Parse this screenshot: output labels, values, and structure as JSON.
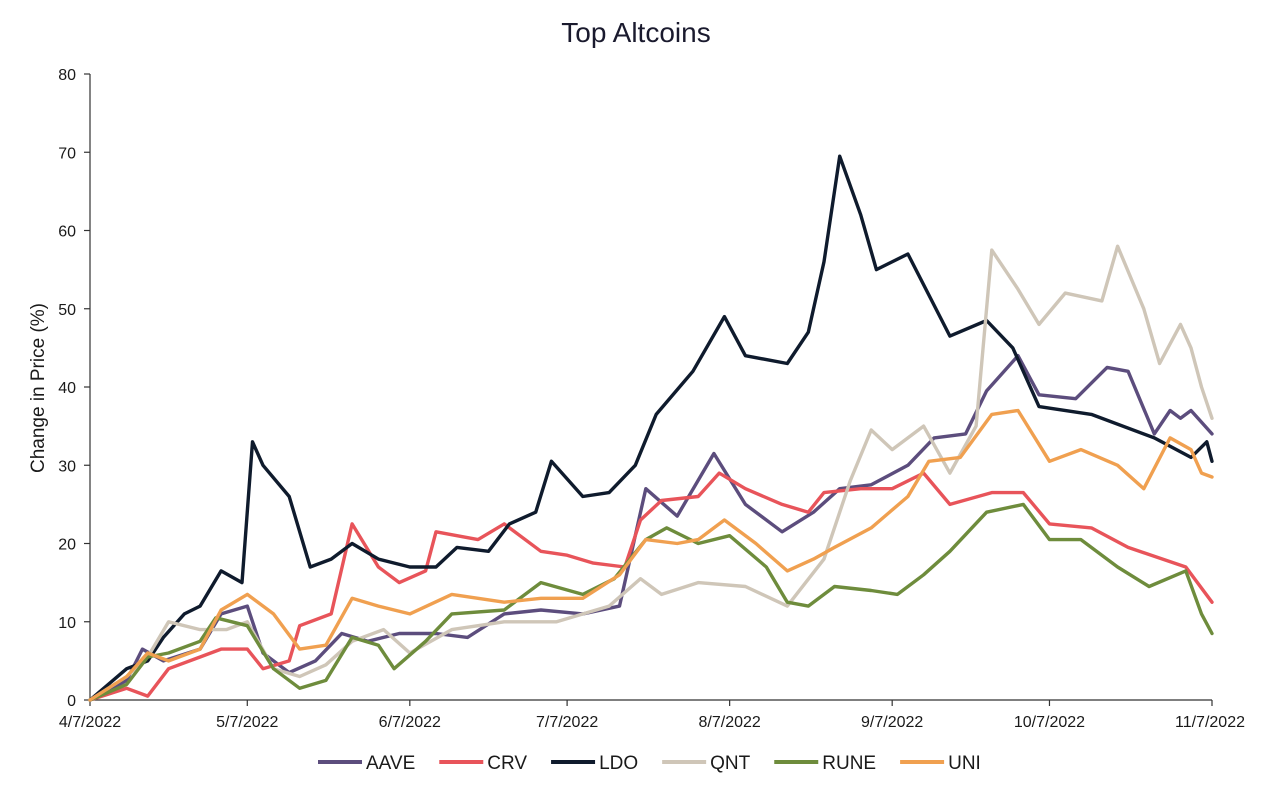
{
  "colors": {
    "AAVE": "#5c4d7d",
    "CRV": "#e8545a",
    "LDO": "#0f1b2d",
    "QNT": "#cfc6b8",
    "RUNE": "#6e8c3c",
    "UNI": "#f0a050"
  },
  "chart_data": {
    "type": "line",
    "title": "Top Altcoins",
    "xlabel": "",
    "ylabel": "Change in Price (%)",
    "x_ticks": [
      "4/7/2022",
      "5/7/2022",
      "6/7/2022",
      "7/7/2022",
      "8/7/2022",
      "9/7/2022",
      "10/7/2022",
      "11/7/2022"
    ],
    "y_ticks": [
      0,
      10,
      20,
      30,
      40,
      50,
      60,
      70,
      80
    ],
    "ylim": [
      0,
      80
    ],
    "xlim": [
      "4/7/2022",
      "11/7/2022"
    ],
    "legend_position": "bottom",
    "grid": false,
    "series": [
      {
        "name": "AAVE",
        "points": [
          [
            "4/7/2022",
            0
          ],
          [
            "4/14/2022",
            2.5
          ],
          [
            "4/17/2022",
            6.5
          ],
          [
            "4/21/2022",
            5
          ],
          [
            "4/28/2022",
            6.5
          ],
          [
            "5/2/2022",
            11
          ],
          [
            "5/7/2022",
            12
          ],
          [
            "5/10/2022",
            6
          ],
          [
            "5/15/2022",
            3.5
          ],
          [
            "5/20/2022",
            5
          ],
          [
            "5/25/2022",
            8.5
          ],
          [
            "5/30/2022",
            7.5
          ],
          [
            "6/5/2022",
            8.5
          ],
          [
            "6/12/2022",
            8.5
          ],
          [
            "6/18/2022",
            8
          ],
          [
            "6/25/2022",
            11
          ],
          [
            "7/2/2022",
            11.5
          ],
          [
            "7/10/2022",
            11
          ],
          [
            "7/17/2022",
            12
          ],
          [
            "7/22/2022",
            27
          ],
          [
            "7/28/2022",
            23.5
          ],
          [
            "8/4/2022",
            31.5
          ],
          [
            "8/10/2022",
            25
          ],
          [
            "8/17/2022",
            21.5
          ],
          [
            "8/23/2022",
            24
          ],
          [
            "8/28/2022",
            27
          ],
          [
            "9/3/2022",
            27.5
          ],
          [
            "9/10/2022",
            30
          ],
          [
            "9/15/2022",
            33.5
          ],
          [
            "9/21/2022",
            34
          ],
          [
            "9/25/2022",
            39.5
          ],
          [
            "10/1/2022",
            44
          ],
          [
            "10/5/2022",
            39
          ],
          [
            "10/12/2022",
            38.5
          ],
          [
            "10/18/2022",
            42.5
          ],
          [
            "10/22/2022",
            42
          ],
          [
            "10/27/2022",
            34
          ],
          [
            "10/30/2022",
            37
          ],
          [
            "11/1/2022",
            36
          ],
          [
            "11/3/2022",
            37
          ],
          [
            "11/7/2022",
            34
          ]
        ]
      },
      {
        "name": "CRV",
        "points": [
          [
            "4/7/2022",
            0
          ],
          [
            "4/14/2022",
            1.5
          ],
          [
            "4/18/2022",
            0.5
          ],
          [
            "4/22/2022",
            4
          ],
          [
            "4/28/2022",
            5.5
          ],
          [
            "5/2/2022",
            6.5
          ],
          [
            "5/7/2022",
            6.5
          ],
          [
            "5/10/2022",
            4
          ],
          [
            "5/15/2022",
            5
          ],
          [
            "5/17/2022",
            9.5
          ],
          [
            "5/23/2022",
            11
          ],
          [
            "5/27/2022",
            22.5
          ],
          [
            "6/1/2022",
            17
          ],
          [
            "6/5/2022",
            15
          ],
          [
            "6/10/2022",
            16.5
          ],
          [
            "6/12/2022",
            21.5
          ],
          [
            "6/20/2022",
            20.5
          ],
          [
            "6/25/2022",
            22.5
          ],
          [
            "7/2/2022",
            19
          ],
          [
            "7/7/2022",
            18.5
          ],
          [
            "7/12/2022",
            17.5
          ],
          [
            "7/18/2022",
            17
          ],
          [
            "7/21/2022",
            23
          ],
          [
            "7/25/2022",
            25.5
          ],
          [
            "8/1/2022",
            26
          ],
          [
            "8/5/2022",
            29
          ],
          [
            "8/10/2022",
            27
          ],
          [
            "8/17/2022",
            25
          ],
          [
            "8/22/2022",
            24
          ],
          [
            "8/25/2022",
            26.5
          ],
          [
            "9/1/2022",
            27
          ],
          [
            "9/7/2022",
            27
          ],
          [
            "9/13/2022",
            29
          ],
          [
            "9/18/2022",
            25
          ],
          [
            "9/26/2022",
            26.5
          ],
          [
            "10/2/2022",
            26.5
          ],
          [
            "10/7/2022",
            22.5
          ],
          [
            "10/15/2022",
            22
          ],
          [
            "10/22/2022",
            19.5
          ],
          [
            "11/2/2022",
            17
          ],
          [
            "11/7/2022",
            12.5
          ]
        ]
      },
      {
        "name": "LDO",
        "points": [
          [
            "4/7/2022",
            0
          ],
          [
            "4/14/2022",
            4
          ],
          [
            "4/18/2022",
            5
          ],
          [
            "4/21/2022",
            8
          ],
          [
            "4/25/2022",
            11
          ],
          [
            "4/28/2022",
            12
          ],
          [
            "5/2/2022",
            16.5
          ],
          [
            "5/6/2022",
            15
          ],
          [
            "5/8/2022",
            33
          ],
          [
            "5/10/2022",
            30
          ],
          [
            "5/15/2022",
            26
          ],
          [
            "5/19/2022",
            17
          ],
          [
            "5/23/2022",
            18
          ],
          [
            "5/27/2022",
            20
          ],
          [
            "6/1/2022",
            18
          ],
          [
            "6/7/2022",
            17
          ],
          [
            "6/12/2022",
            17
          ],
          [
            "6/16/2022",
            19.5
          ],
          [
            "6/22/2022",
            19
          ],
          [
            "6/26/2022",
            22.5
          ],
          [
            "7/1/2022",
            24
          ],
          [
            "7/4/2022",
            30.5
          ],
          [
            "7/10/2022",
            26
          ],
          [
            "7/15/2022",
            26.5
          ],
          [
            "7/20/2022",
            30
          ],
          [
            "7/24/2022",
            36.5
          ],
          [
            "7/31/2022",
            42
          ],
          [
            "8/6/2022",
            49
          ],
          [
            "8/10/2022",
            44
          ],
          [
            "8/18/2022",
            43
          ],
          [
            "8/22/2022",
            47
          ],
          [
            "8/25/2022",
            56
          ],
          [
            "8/28/2022",
            69.5
          ],
          [
            "9/1/2022",
            62
          ],
          [
            "9/4/2022",
            55
          ],
          [
            "9/10/2022",
            57
          ],
          [
            "9/18/2022",
            46.5
          ],
          [
            "9/25/2022",
            48.5
          ],
          [
            "9/30/2022",
            45
          ],
          [
            "10/5/2022",
            37.5
          ],
          [
            "10/15/2022",
            36.5
          ],
          [
            "10/27/2022",
            33.5
          ],
          [
            "11/3/2022",
            31
          ],
          [
            "11/6/2022",
            33
          ],
          [
            "11/7/2022",
            30.5
          ]
        ]
      },
      {
        "name": "QNT",
        "points": [
          [
            "4/7/2022",
            0
          ],
          [
            "4/14/2022",
            3
          ],
          [
            "4/18/2022",
            5.5
          ],
          [
            "4/22/2022",
            10
          ],
          [
            "4/28/2022",
            9
          ],
          [
            "5/3/2022",
            9
          ],
          [
            "5/7/2022",
            10
          ],
          [
            "5/12/2022",
            4
          ],
          [
            "5/17/2022",
            3
          ],
          [
            "5/22/2022",
            4.5
          ],
          [
            "5/27/2022",
            7.5
          ],
          [
            "6/2/2022",
            9
          ],
          [
            "6/7/2022",
            6
          ],
          [
            "6/15/2022",
            9
          ],
          [
            "6/25/2022",
            10
          ],
          [
            "7/5/2022",
            10
          ],
          [
            "7/15/2022",
            12
          ],
          [
            "7/21/2022",
            15.5
          ],
          [
            "7/25/2022",
            13.5
          ],
          [
            "8/1/2022",
            15
          ],
          [
            "8/10/2022",
            14.5
          ],
          [
            "8/18/2022",
            12
          ],
          [
            "8/25/2022",
            18
          ],
          [
            "8/30/2022",
            28
          ],
          [
            "9/3/2022",
            34.5
          ],
          [
            "9/7/2022",
            32
          ],
          [
            "9/13/2022",
            35
          ],
          [
            "9/18/2022",
            29
          ],
          [
            "9/23/2022",
            35
          ],
          [
            "9/26/2022",
            57.5
          ],
          [
            "10/1/2022",
            52.5
          ],
          [
            "10/5/2022",
            48
          ],
          [
            "10/10/2022",
            52
          ],
          [
            "10/17/2022",
            51
          ],
          [
            "10/20/2022",
            58
          ],
          [
            "10/25/2022",
            50
          ],
          [
            "10/28/2022",
            43
          ],
          [
            "11/1/2022",
            48
          ],
          [
            "11/3/2022",
            45
          ],
          [
            "11/5/2022",
            40
          ],
          [
            "11/7/2022",
            36
          ]
        ]
      },
      {
        "name": "RUNE",
        "points": [
          [
            "4/7/2022",
            0
          ],
          [
            "4/14/2022",
            2
          ],
          [
            "4/18/2022",
            5.5
          ],
          [
            "4/22/2022",
            6
          ],
          [
            "4/28/2022",
            7.5
          ],
          [
            "5/1/2022",
            10.5
          ],
          [
            "5/7/2022",
            9.5
          ],
          [
            "5/12/2022",
            4
          ],
          [
            "5/17/2022",
            1.5
          ],
          [
            "5/22/2022",
            2.5
          ],
          [
            "5/27/2022",
            8
          ],
          [
            "6/1/2022",
            7
          ],
          [
            "6/4/2022",
            4
          ],
          [
            "6/10/2022",
            7.5
          ],
          [
            "6/15/2022",
            11
          ],
          [
            "6/25/2022",
            11.5
          ],
          [
            "7/2/2022",
            15
          ],
          [
            "7/10/2022",
            13.5
          ],
          [
            "7/16/2022",
            15.5
          ],
          [
            "7/22/2022",
            20.5
          ],
          [
            "7/26/2022",
            22
          ],
          [
            "8/1/2022",
            20
          ],
          [
            "8/7/2022",
            21
          ],
          [
            "8/14/2022",
            17
          ],
          [
            "8/18/2022",
            12.5
          ],
          [
            "8/22/2022",
            12
          ],
          [
            "8/27/2022",
            14.5
          ],
          [
            "9/3/2022",
            14
          ],
          [
            "9/8/2022",
            13.5
          ],
          [
            "9/13/2022",
            16
          ],
          [
            "9/18/2022",
            19
          ],
          [
            "9/25/2022",
            24
          ],
          [
            "10/2/2022",
            25
          ],
          [
            "10/7/2022",
            20.5
          ],
          [
            "10/13/2022",
            20.5
          ],
          [
            "10/20/2022",
            17
          ],
          [
            "10/26/2022",
            14.5
          ],
          [
            "11/2/2022",
            16.5
          ],
          [
            "11/5/2022",
            11
          ],
          [
            "11/7/2022",
            8.5
          ]
        ]
      },
      {
        "name": "UNI",
        "points": [
          [
            "4/7/2022",
            0
          ],
          [
            "4/14/2022",
            3
          ],
          [
            "4/18/2022",
            6
          ],
          [
            "4/22/2022",
            5
          ],
          [
            "4/28/2022",
            6.5
          ],
          [
            "5/2/2022",
            11.5
          ],
          [
            "5/7/2022",
            13.5
          ],
          [
            "5/12/2022",
            11
          ],
          [
            "5/17/2022",
            6.5
          ],
          [
            "5/22/2022",
            7
          ],
          [
            "5/27/2022",
            13
          ],
          [
            "6/1/2022",
            12
          ],
          [
            "6/7/2022",
            11
          ],
          [
            "6/15/2022",
            13.5
          ],
          [
            "6/25/2022",
            12.5
          ],
          [
            "7/2/2022",
            13
          ],
          [
            "7/10/2022",
            13
          ],
          [
            "7/17/2022",
            16
          ],
          [
            "7/22/2022",
            20.5
          ],
          [
            "7/28/2022",
            20
          ],
          [
            "8/1/2022",
            20.5
          ],
          [
            "8/6/2022",
            23
          ],
          [
            "8/12/2022",
            20
          ],
          [
            "8/18/2022",
            16.5
          ],
          [
            "8/23/2022",
            18
          ],
          [
            "8/27/2022",
            19.5
          ],
          [
            "9/3/2022",
            22
          ],
          [
            "9/10/2022",
            26
          ],
          [
            "9/14/2022",
            30.5
          ],
          [
            "9/20/2022",
            31
          ],
          [
            "9/26/2022",
            36.5
          ],
          [
            "10/1/2022",
            37
          ],
          [
            "10/7/2022",
            30.5
          ],
          [
            "10/13/2022",
            32
          ],
          [
            "10/20/2022",
            30
          ],
          [
            "10/25/2022",
            27
          ],
          [
            "10/30/2022",
            33.5
          ],
          [
            "11/3/2022",
            32
          ],
          [
            "11/5/2022",
            29
          ],
          [
            "11/7/2022",
            28.5
          ]
        ]
      }
    ]
  }
}
